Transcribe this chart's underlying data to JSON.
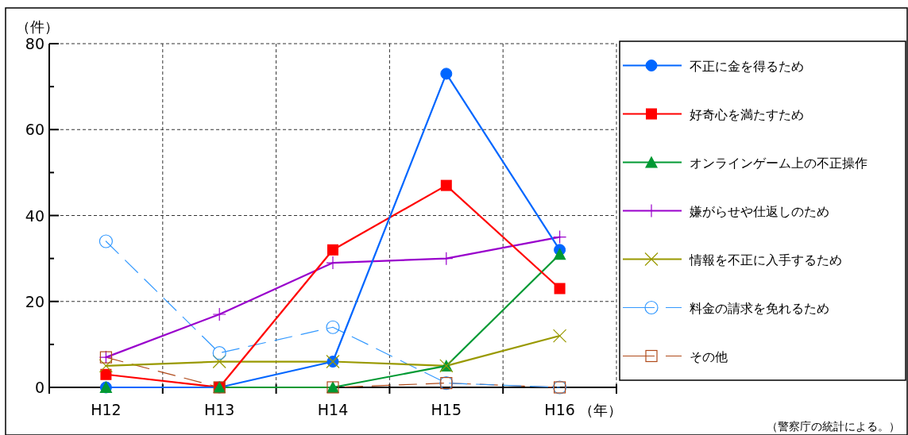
{
  "chart_data": {
    "type": "line",
    "ylabel": "（件）",
    "xlabel": "（年）",
    "categories": [
      "H12",
      "H13",
      "H14",
      "H15",
      "H16"
    ],
    "series": [
      {
        "name": "不正に金を得るため",
        "color": "#0066ff",
        "marker": "circle",
        "line_style": "solid",
        "values": [
          0,
          0,
          6,
          73,
          32
        ]
      },
      {
        "name": "好奇心を満たすため",
        "color": "#ff0000",
        "marker": "square",
        "line_style": "solid",
        "values": [
          3,
          0,
          32,
          47,
          23
        ]
      },
      {
        "name": "オンラインゲーム上の不正操作",
        "color": "#009933",
        "marker": "triangle",
        "line_style": "solid",
        "values": [
          0,
          0,
          0,
          5,
          31
        ]
      },
      {
        "name": "嫌がらせや仕返しのため",
        "color": "#9900cc",
        "marker": "cross",
        "line_style": "solid",
        "values": [
          7,
          17,
          29,
          30,
          35
        ]
      },
      {
        "name": "情報を不正に入手するため",
        "color": "#999900",
        "marker": "x",
        "line_style": "solid",
        "values": [
          5,
          6,
          6,
          5,
          12
        ]
      },
      {
        "name": "料金の請求を免れるため",
        "color": "#3399ff",
        "marker": "circle-open",
        "line_style": "dashed",
        "values": [
          34,
          8,
          14,
          1,
          0
        ]
      },
      {
        "name": "その他",
        "color": "#b04a1a",
        "marker": "square-open",
        "line_style": "dashed",
        "values": [
          7,
          0,
          0,
          1,
          0
        ]
      }
    ],
    "ylim": [
      0,
      80
    ],
    "yticks": [
      0,
      {
        "value": 10,
        "label": null
      },
      20,
      {
        "value": 30,
        "label": null
      },
      40,
      {
        "value": 50,
        "label": null
      },
      60,
      {
        "value": 70,
        "label": null
      },
      80
    ],
    "grid": true,
    "legend": "right",
    "annotations": [
      "（警察庁の統計による。）"
    ]
  }
}
